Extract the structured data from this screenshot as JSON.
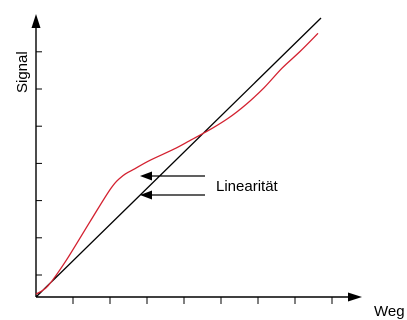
{
  "chart_data": {
    "type": "line",
    "xlabel": "Weg",
    "ylabel": "Signal",
    "xlim": [
      0,
      1
    ],
    "ylim": [
      0,
      1
    ],
    "x_tick_count": 8,
    "y_tick_count": 7,
    "grid": false,
    "legend": "none",
    "series": [
      {
        "role": "ideal",
        "color": "#000000",
        "x": [
          0.0,
          0.95
        ],
        "y": [
          0.0,
          1.0
        ]
      },
      {
        "role": "actual",
        "color": "#d3202f",
        "x": [
          0.0,
          0.04,
          0.1,
          0.18,
          0.25,
          0.29,
          0.33,
          0.38,
          0.46,
          0.52,
          0.58,
          0.64,
          0.7,
          0.76,
          0.82,
          0.88,
          0.94
        ],
        "y": [
          0.01,
          0.04,
          0.13,
          0.27,
          0.39,
          0.435,
          0.46,
          0.49,
          0.53,
          0.565,
          0.6,
          0.64,
          0.69,
          0.75,
          0.82,
          0.88,
          0.945
        ]
      }
    ],
    "annotations": [
      {
        "text": "Linearität"
      }
    ]
  }
}
